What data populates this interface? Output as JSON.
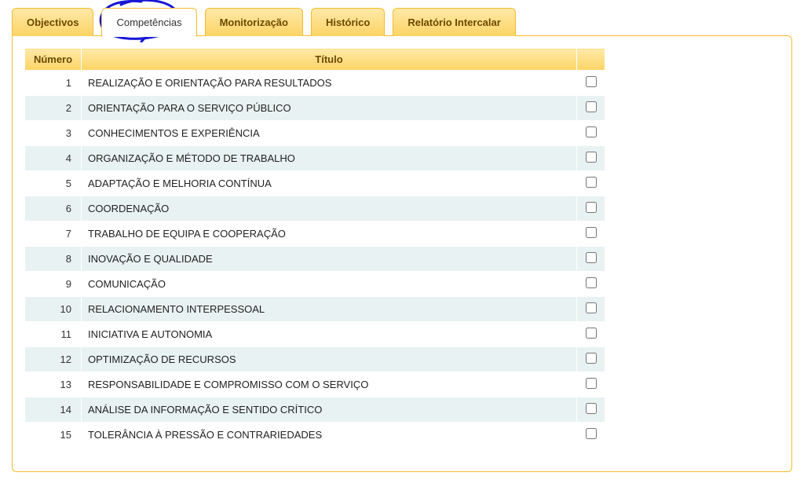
{
  "tabs": [
    {
      "id": "objectivos",
      "label": "Objectivos",
      "active": false
    },
    {
      "id": "competencias",
      "label": "Competências",
      "active": true
    },
    {
      "id": "monitorizacao",
      "label": "Monitorização",
      "active": false
    },
    {
      "id": "historico",
      "label": "Histórico",
      "active": false
    },
    {
      "id": "relatorio",
      "label": "Relatório Intercalar",
      "active": false
    }
  ],
  "annotation": {
    "stroke": "#1818d6",
    "stroke_width": 3
  },
  "table": {
    "headers": {
      "numero": "Número",
      "titulo": "Título",
      "sel": ""
    },
    "rows": [
      {
        "n": 1,
        "t": "REALIZAÇÃO E ORIENTAÇÃO PARA RESULTADOS"
      },
      {
        "n": 2,
        "t": "ORIENTAÇÃO PARA O SERVIÇO PÚBLICO"
      },
      {
        "n": 3,
        "t": "CONHECIMENTOS E EXPERIÊNCIA"
      },
      {
        "n": 4,
        "t": "ORGANIZAÇÃO E MÉTODO DE TRABALHO"
      },
      {
        "n": 5,
        "t": "ADAPTAÇÃO E MELHORIA CONTÍNUA"
      },
      {
        "n": 6,
        "t": "COORDENAÇÃO"
      },
      {
        "n": 7,
        "t": "TRABALHO DE EQUIPA E COOPERAÇÃO"
      },
      {
        "n": 8,
        "t": "INOVAÇÃO E QUALIDADE"
      },
      {
        "n": 9,
        "t": "COMUNICAÇÃO"
      },
      {
        "n": 10,
        "t": "RELACIONAMENTO INTERPESSOAL"
      },
      {
        "n": 11,
        "t": "INICIATIVA E AUTONOMIA"
      },
      {
        "n": 12,
        "t": "OPTIMIZAÇÃO DE RECURSOS"
      },
      {
        "n": 13,
        "t": "RESPONSABILIDADE E COMPROMISSO COM O SERVIÇO"
      },
      {
        "n": 14,
        "t": "ANÁLISE DA INFORMAÇÃO E SENTIDO CRÍTICO"
      },
      {
        "n": 15,
        "t": "TOLERÂNCIA À PRESSÃO E CONTRARIEDADES"
      }
    ],
    "colors": {
      "header_bg_top": "#ffe9a8",
      "header_bg_bottom": "#fcd465",
      "header_text": "#6b4a00",
      "row_odd_bg": "#ffffff",
      "row_even_bg": "#e9f2f2",
      "border": "#f7bb2e"
    }
  }
}
